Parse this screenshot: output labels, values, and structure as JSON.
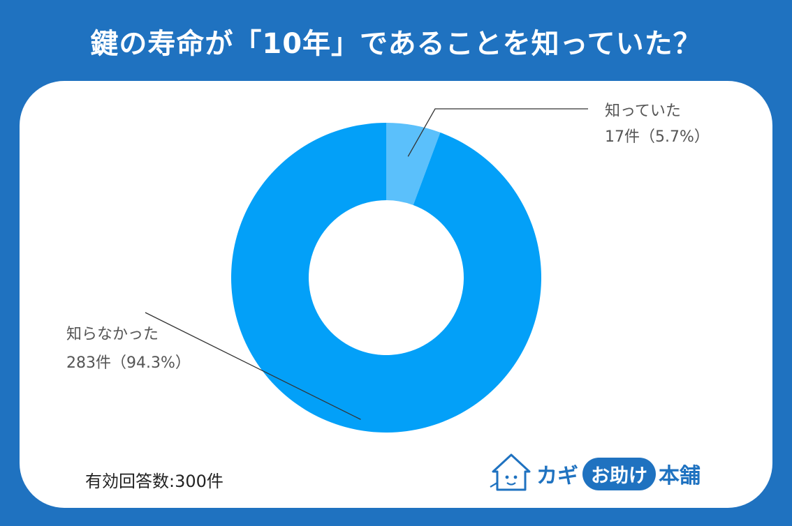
{
  "title": "鍵の寿命が「10年」であることを知っていた？",
  "footer": {
    "respondents": "有効回答数:300件"
  },
  "brand": {
    "kagi": "カギ",
    "otasuke": "お助け",
    "honpo": "本舗"
  },
  "colors": {
    "background": "#1f72c0",
    "card": "#ffffff",
    "slice_known": "#5bc0fb",
    "slice_unknown": "#03a0f8",
    "label_text": "#555555"
  },
  "chart_data": {
    "type": "pie",
    "donut": true,
    "title": "鍵の寿命が「10年」であることを知っていた？",
    "total": 300,
    "slices": [
      {
        "label": "知っていた",
        "count": 17,
        "percent": 5.7,
        "value_text": "17件（5.7%）",
        "color": "#5bc0fb"
      },
      {
        "label": "知らなかった",
        "count": 283,
        "percent": 94.3,
        "value_text": "283件（94.3%）",
        "color": "#03a0f8"
      }
    ]
  }
}
